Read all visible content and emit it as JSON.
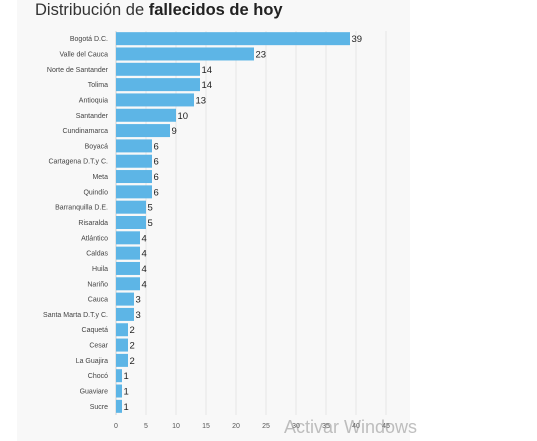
{
  "title": {
    "prefix": "Distribución de",
    "bold": "fallecidos de hoy"
  },
  "watermark": "Activar Windows",
  "chart_data": {
    "type": "bar",
    "orientation": "horizontal",
    "categories": [
      "Bogotá D.C.",
      "Valle del Cauca",
      "Norte de Santander",
      "Tolima",
      "Antioquia",
      "Santander",
      "Cundinamarca",
      "Boyacá",
      "Cartagena D.T.y C.",
      "Meta",
      "Quindío",
      "Barranquilla D.E.",
      "Risaralda",
      "Atlántico",
      "Caldas",
      "Huila",
      "Nariño",
      "Cauca",
      "Santa Marta D.T.y C.",
      "Caquetá",
      "Cesar",
      "La Guajira",
      "Chocó",
      "Guaviare",
      "Sucre"
    ],
    "values": [
      39,
      23,
      14,
      14,
      13,
      10,
      9,
      6,
      6,
      6,
      6,
      5,
      5,
      4,
      4,
      4,
      4,
      3,
      3,
      2,
      2,
      2,
      1,
      1,
      1
    ],
    "xticks": [
      0,
      5,
      10,
      15,
      20,
      25,
      30,
      35,
      40,
      45
    ],
    "xlim": [
      0,
      45
    ],
    "bar_color": "#5db5e6",
    "grid": true,
    "data_labels": true
  }
}
